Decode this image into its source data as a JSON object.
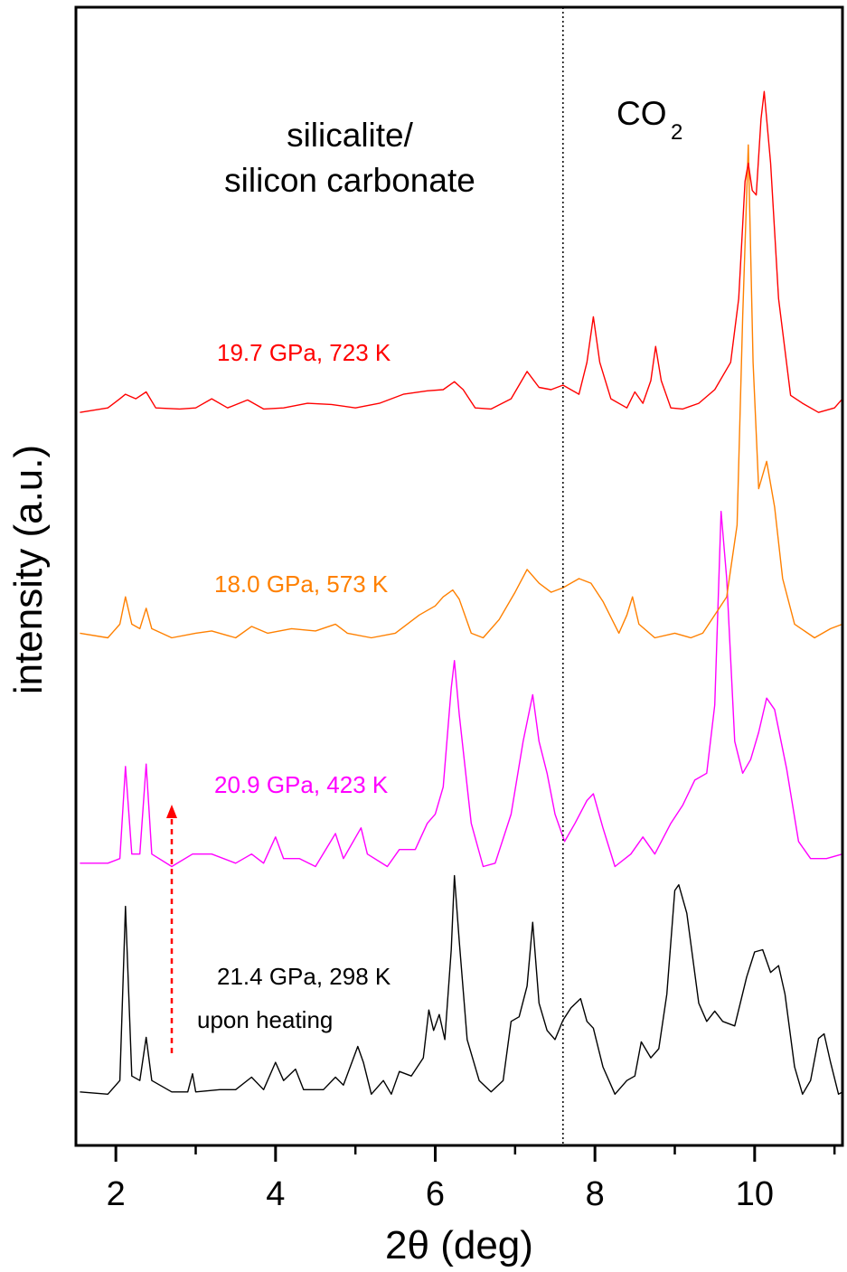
{
  "chart_data": {
    "type": "line",
    "title": "",
    "xlabel": "2θ (deg)",
    "ylabel": "intensity (a.u.)",
    "xlim": [
      1.5,
      11.1
    ],
    "ylim": [
      0,
      100
    ],
    "xticks": [
      2,
      4,
      6,
      8,
      10
    ],
    "xticks_minor": [
      3,
      5,
      7,
      9,
      11
    ],
    "yticks": [],
    "grid": false,
    "legend": "none (inline labels next to curves)",
    "reference_line": {
      "x": 7.6,
      "style": "dotted",
      "color": "#000000"
    },
    "annotations": {
      "phase_label_line1": "silicalite/",
      "phase_label_line2": "silicon carbonate",
      "co2_label": "CO",
      "co2_subscript": "2",
      "heating_note": "upon heating",
      "arrow": {
        "x": 2.7,
        "direction": "up",
        "style": "dashed",
        "color": "#ff0000"
      }
    },
    "series": [
      {
        "name": "21.4 GPa, 298 K",
        "color": "#000000",
        "points": [
          [
            1.55,
            4.7
          ],
          [
            1.9,
            4.5
          ],
          [
            2.05,
            5.7
          ],
          [
            2.12,
            21.0
          ],
          [
            2.2,
            6.1
          ],
          [
            2.3,
            5.7
          ],
          [
            2.38,
            9.5
          ],
          [
            2.45,
            5.7
          ],
          [
            2.7,
            4.7
          ],
          [
            2.9,
            4.7
          ],
          [
            2.96,
            6.3
          ],
          [
            3.0,
            4.7
          ],
          [
            3.3,
            4.9
          ],
          [
            3.5,
            4.9
          ],
          [
            3.7,
            6.0
          ],
          [
            3.85,
            4.9
          ],
          [
            4.0,
            7.3
          ],
          [
            4.1,
            5.7
          ],
          [
            4.25,
            6.7
          ],
          [
            4.35,
            4.9
          ],
          [
            4.6,
            4.9
          ],
          [
            4.75,
            6.0
          ],
          [
            4.85,
            5.3
          ],
          [
            5.03,
            8.7
          ],
          [
            5.1,
            7.3
          ],
          [
            5.2,
            4.5
          ],
          [
            5.35,
            5.7
          ],
          [
            5.45,
            4.5
          ],
          [
            5.55,
            6.5
          ],
          [
            5.7,
            6.1
          ],
          [
            5.85,
            7.7
          ],
          [
            5.92,
            11.9
          ],
          [
            5.98,
            10.1
          ],
          [
            6.05,
            11.5
          ],
          [
            6.12,
            9.3
          ],
          [
            6.2,
            17.2
          ],
          [
            6.24,
            23.7
          ],
          [
            6.3,
            18.0
          ],
          [
            6.4,
            9.3
          ],
          [
            6.55,
            5.7
          ],
          [
            6.7,
            4.7
          ],
          [
            6.85,
            5.7
          ],
          [
            6.95,
            10.9
          ],
          [
            7.05,
            11.3
          ],
          [
            7.15,
            14.0
          ],
          [
            7.22,
            19.6
          ],
          [
            7.3,
            12.5
          ],
          [
            7.4,
            10.1
          ],
          [
            7.5,
            9.3
          ],
          [
            7.6,
            11.0
          ],
          [
            7.7,
            12.1
          ],
          [
            7.82,
            12.9
          ],
          [
            7.9,
            10.9
          ],
          [
            7.98,
            10.3
          ],
          [
            8.1,
            6.9
          ],
          [
            8.25,
            4.5
          ],
          [
            8.4,
            5.7
          ],
          [
            8.5,
            6.1
          ],
          [
            8.58,
            9.1
          ],
          [
            8.7,
            7.7
          ],
          [
            8.8,
            8.5
          ],
          [
            8.9,
            13.3
          ],
          [
            9.0,
            22.4
          ],
          [
            9.05,
            22.9
          ],
          [
            9.15,
            20.4
          ],
          [
            9.3,
            12.5
          ],
          [
            9.4,
            10.9
          ],
          [
            9.5,
            11.8
          ],
          [
            9.6,
            10.9
          ],
          [
            9.75,
            10.5
          ],
          [
            9.9,
            14.8
          ],
          [
            10.0,
            17.0
          ],
          [
            10.1,
            17.2
          ],
          [
            10.2,
            15.2
          ],
          [
            10.3,
            15.8
          ],
          [
            10.38,
            13.3
          ],
          [
            10.5,
            6.9
          ],
          [
            10.6,
            4.5
          ],
          [
            10.7,
            5.7
          ],
          [
            10.8,
            9.4
          ],
          [
            10.87,
            9.8
          ],
          [
            10.95,
            7.3
          ],
          [
            11.05,
            4.5
          ],
          [
            11.1,
            4.7
          ]
        ]
      },
      {
        "name": "20.9 GPa, 423 K",
        "color": "#ff00ff",
        "points": [
          [
            1.55,
            24.8
          ],
          [
            1.9,
            24.8
          ],
          [
            2.05,
            25.2
          ],
          [
            2.12,
            33.3
          ],
          [
            2.2,
            25.6
          ],
          [
            2.3,
            25.6
          ],
          [
            2.38,
            33.5
          ],
          [
            2.45,
            25.6
          ],
          [
            2.7,
            24.5
          ],
          [
            2.96,
            25.6
          ],
          [
            3.2,
            25.6
          ],
          [
            3.5,
            24.8
          ],
          [
            3.7,
            25.6
          ],
          [
            3.85,
            24.8
          ],
          [
            4.0,
            27.1
          ],
          [
            4.1,
            25.2
          ],
          [
            4.3,
            25.2
          ],
          [
            4.5,
            24.5
          ],
          [
            4.75,
            27.4
          ],
          [
            4.85,
            25.2
          ],
          [
            5.07,
            27.9
          ],
          [
            5.15,
            25.6
          ],
          [
            5.4,
            24.5
          ],
          [
            5.55,
            26.0
          ],
          [
            5.75,
            26.0
          ],
          [
            5.9,
            28.3
          ],
          [
            6.0,
            29.1
          ],
          [
            6.1,
            31.5
          ],
          [
            6.2,
            40.2
          ],
          [
            6.24,
            42.6
          ],
          [
            6.3,
            37.9
          ],
          [
            6.45,
            28.3
          ],
          [
            6.6,
            24.5
          ],
          [
            6.75,
            24.8
          ],
          [
            6.95,
            29.1
          ],
          [
            7.1,
            35.5
          ],
          [
            7.22,
            39.6
          ],
          [
            7.3,
            35.5
          ],
          [
            7.4,
            32.7
          ],
          [
            7.5,
            29.1
          ],
          [
            7.62,
            26.7
          ],
          [
            7.75,
            28.3
          ],
          [
            7.9,
            30.3
          ],
          [
            7.98,
            30.9
          ],
          [
            8.1,
            27.9
          ],
          [
            8.25,
            24.5
          ],
          [
            8.45,
            25.6
          ],
          [
            8.6,
            27.1
          ],
          [
            8.75,
            25.6
          ],
          [
            8.95,
            28.3
          ],
          [
            9.1,
            29.9
          ],
          [
            9.25,
            32.1
          ],
          [
            9.4,
            32.7
          ],
          [
            9.5,
            38.7
          ],
          [
            9.58,
            55.7
          ],
          [
            9.65,
            49.8
          ],
          [
            9.75,
            35.5
          ],
          [
            9.85,
            32.7
          ],
          [
            9.95,
            33.9
          ],
          [
            10.05,
            36.3
          ],
          [
            10.15,
            39.3
          ],
          [
            10.25,
            38.3
          ],
          [
            10.4,
            33.1
          ],
          [
            10.55,
            26.7
          ],
          [
            10.7,
            25.2
          ],
          [
            10.9,
            25.2
          ],
          [
            11.1,
            25.6
          ]
        ]
      },
      {
        "name": "18.0 GPa, 573 K",
        "color": "#ff8000",
        "points": [
          [
            1.55,
            45.0
          ],
          [
            1.9,
            44.6
          ],
          [
            2.05,
            45.8
          ],
          [
            2.12,
            48.2
          ],
          [
            2.2,
            45.8
          ],
          [
            2.3,
            45.4
          ],
          [
            2.38,
            47.2
          ],
          [
            2.45,
            45.4
          ],
          [
            2.7,
            44.6
          ],
          [
            3.0,
            45.0
          ],
          [
            3.2,
            45.2
          ],
          [
            3.5,
            44.6
          ],
          [
            3.7,
            45.6
          ],
          [
            3.9,
            45.0
          ],
          [
            4.2,
            45.4
          ],
          [
            4.5,
            45.2
          ],
          [
            4.75,
            45.8
          ],
          [
            4.9,
            45.0
          ],
          [
            5.2,
            44.6
          ],
          [
            5.5,
            45.0
          ],
          [
            5.8,
            46.6
          ],
          [
            6.0,
            47.4
          ],
          [
            6.1,
            48.2
          ],
          [
            6.22,
            48.8
          ],
          [
            6.3,
            48.0
          ],
          [
            6.45,
            45.0
          ],
          [
            6.6,
            44.6
          ],
          [
            6.8,
            46.2
          ],
          [
            7.0,
            48.6
          ],
          [
            7.15,
            50.6
          ],
          [
            7.3,
            49.4
          ],
          [
            7.45,
            48.6
          ],
          [
            7.6,
            49.0
          ],
          [
            7.8,
            49.8
          ],
          [
            7.95,
            49.4
          ],
          [
            8.1,
            47.8
          ],
          [
            8.3,
            45.0
          ],
          [
            8.4,
            46.6
          ],
          [
            8.47,
            48.2
          ],
          [
            8.55,
            45.8
          ],
          [
            8.75,
            44.6
          ],
          [
            9.0,
            45.0
          ],
          [
            9.2,
            44.6
          ],
          [
            9.35,
            45.0
          ],
          [
            9.5,
            46.6
          ],
          [
            9.65,
            48.2
          ],
          [
            9.78,
            54.5
          ],
          [
            9.85,
            72.8
          ],
          [
            9.92,
            87.9
          ],
          [
            9.98,
            68.8
          ],
          [
            10.05,
            57.7
          ],
          [
            10.15,
            60.1
          ],
          [
            10.25,
            56.1
          ],
          [
            10.35,
            49.8
          ],
          [
            10.5,
            45.8
          ],
          [
            10.75,
            44.6
          ],
          [
            10.95,
            45.4
          ],
          [
            11.1,
            45.8
          ]
        ]
      },
      {
        "name": "19.7 GPa, 723 K",
        "color": "#ff0000",
        "points": [
          [
            1.55,
            64.4
          ],
          [
            1.9,
            64.8
          ],
          [
            2.05,
            65.6
          ],
          [
            2.12,
            66.0
          ],
          [
            2.25,
            65.6
          ],
          [
            2.38,
            66.2
          ],
          [
            2.5,
            64.8
          ],
          [
            2.8,
            64.7
          ],
          [
            3.0,
            64.8
          ],
          [
            3.2,
            65.6
          ],
          [
            3.4,
            64.8
          ],
          [
            3.65,
            65.5
          ],
          [
            3.85,
            64.7
          ],
          [
            4.1,
            64.8
          ],
          [
            4.4,
            65.2
          ],
          [
            4.7,
            65.1
          ],
          [
            5.0,
            64.8
          ],
          [
            5.3,
            65.2
          ],
          [
            5.6,
            66.0
          ],
          [
            5.9,
            66.3
          ],
          [
            6.1,
            66.4
          ],
          [
            6.24,
            67.1
          ],
          [
            6.35,
            66.4
          ],
          [
            6.5,
            64.8
          ],
          [
            6.7,
            64.7
          ],
          [
            6.95,
            65.6
          ],
          [
            7.15,
            68.0
          ],
          [
            7.3,
            66.6
          ],
          [
            7.45,
            66.4
          ],
          [
            7.6,
            66.8
          ],
          [
            7.8,
            66.0
          ],
          [
            7.9,
            68.8
          ],
          [
            7.98,
            72.8
          ],
          [
            8.06,
            68.8
          ],
          [
            8.2,
            65.6
          ],
          [
            8.4,
            64.8
          ],
          [
            8.5,
            66.2
          ],
          [
            8.6,
            65.2
          ],
          [
            8.7,
            67.2
          ],
          [
            8.76,
            70.2
          ],
          [
            8.83,
            67.2
          ],
          [
            8.95,
            64.8
          ],
          [
            9.1,
            64.7
          ],
          [
            9.3,
            65.2
          ],
          [
            9.5,
            66.4
          ],
          [
            9.7,
            68.8
          ],
          [
            9.8,
            74.4
          ],
          [
            9.88,
            84.7
          ],
          [
            9.92,
            86.3
          ],
          [
            9.97,
            83.9
          ],
          [
            10.02,
            83.5
          ],
          [
            10.08,
            90.2
          ],
          [
            10.12,
            92.6
          ],
          [
            10.2,
            86.3
          ],
          [
            10.3,
            74.4
          ],
          [
            10.45,
            65.9
          ],
          [
            10.6,
            65.2
          ],
          [
            10.8,
            64.4
          ],
          [
            11.0,
            64.8
          ],
          [
            11.1,
            65.6
          ]
        ]
      }
    ]
  }
}
